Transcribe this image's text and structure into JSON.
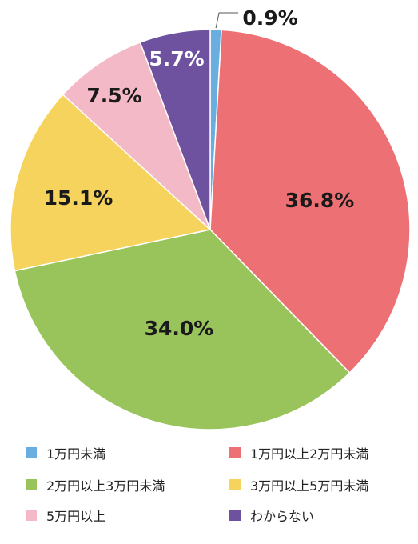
{
  "chart_data": {
    "type": "pie",
    "unit": "%",
    "slices": [
      {
        "label": "1万円未満",
        "value": 0.9,
        "display": "0.9%",
        "color": "#6aaee0"
      },
      {
        "label": "1万円以上2万円未満",
        "value": 36.8,
        "display": "36.8%",
        "color": "#ed7074"
      },
      {
        "label": "2万円以上3万円未満",
        "value": 34.0,
        "display": "34.0%",
        "color": "#99c45b"
      },
      {
        "label": "3万円以上5万円未満",
        "value": 15.1,
        "display": "15.1%",
        "color": "#f5d35c"
      },
      {
        "label": "5万円以上",
        "value": 7.5,
        "display": "7.5%",
        "color": "#f4b9c6"
      },
      {
        "label": "わからない",
        "value": 5.7,
        "display": "5.7%",
        "color": "#6e52a0"
      }
    ],
    "label_colors": [
      "#1a1a1a",
      "#1a1a1a",
      "#1a1a1a",
      "#1a1a1a",
      "#1a1a1a",
      "#ffffff"
    ],
    "start": "top",
    "direction": "clockwise",
    "legend_position": "bottom"
  },
  "legend": {
    "items": [
      {
        "label": "1万円未満",
        "color": "#6aaee0"
      },
      {
        "label": "1万円以上2万円未満",
        "color": "#ed7074"
      },
      {
        "label": "2万円以上3万円未満",
        "color": "#99c45b"
      },
      {
        "label": "3万円以上5万円未満",
        "color": "#f5d35c"
      },
      {
        "label": "5万円以上",
        "color": "#f4b9c6"
      },
      {
        "label": "わからない",
        "color": "#6e52a0"
      }
    ]
  }
}
